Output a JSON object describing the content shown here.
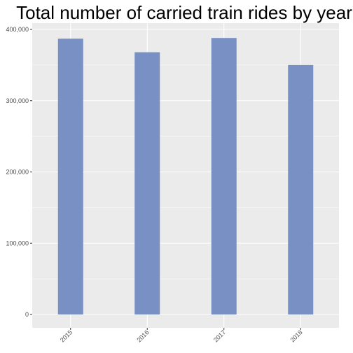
{
  "chart_data": {
    "type": "bar",
    "title": "Total number of carried train rides by year",
    "xlabel": "",
    "ylabel": "",
    "categories": [
      "2015",
      "2016",
      "2017",
      "2018"
    ],
    "values": [
      387000,
      368000,
      388000,
      350000
    ],
    "ylim": [
      0,
      400000
    ],
    "y_ticks": [
      0,
      100000,
      200000,
      300000,
      400000
    ],
    "y_tick_labels": [
      "0",
      "100,000",
      "200,000",
      "300,000",
      "400,000"
    ],
    "grid": true,
    "legend": "none",
    "x_tick_rotation": "45 degrees",
    "colors": {
      "bar": "#7890c3",
      "panel_background": "#ebebeb",
      "gridline": "#ffffff",
      "tick_text": "#4d4d4d",
      "title_text": "#000000"
    }
  }
}
